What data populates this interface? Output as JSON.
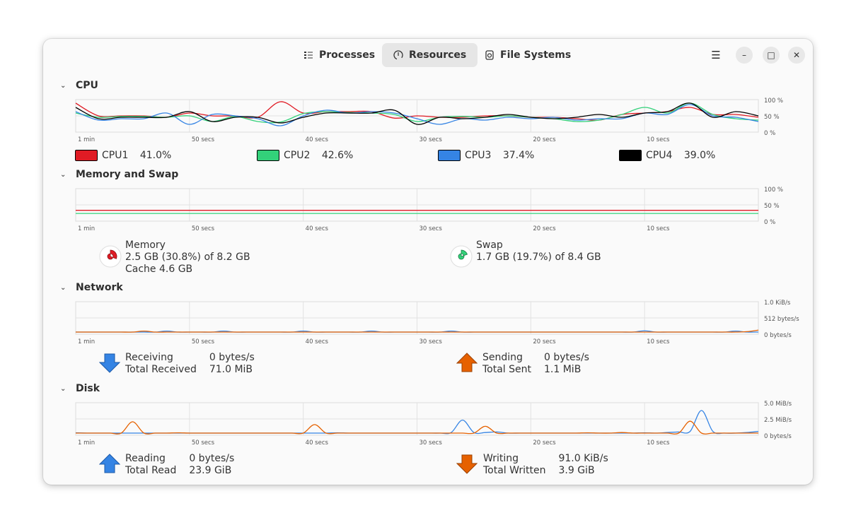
{
  "tabs": [
    {
      "label": "Processes",
      "icon": "list-icon"
    },
    {
      "label": "Resources",
      "icon": "gauge-icon",
      "active": true
    },
    {
      "label": "File Systems",
      "icon": "disk-icon"
    }
  ],
  "window_controls": {
    "menu": "☰",
    "minimize": "–",
    "maximize": "□",
    "close": "✕"
  },
  "time_labels": [
    "1 min",
    "50 secs",
    "40 secs",
    "30 secs",
    "20 secs",
    "10 secs"
  ],
  "cpu": {
    "title": "CPU",
    "y_labels": [
      "100 %",
      "50 %",
      "0 %"
    ],
    "legend": [
      {
        "name": "CPU1",
        "value": "41.0%",
        "color": "#e01b24"
      },
      {
        "name": "CPU2",
        "value": "42.6%",
        "color": "#33d17a"
      },
      {
        "name": "CPU3",
        "value": "37.4%",
        "color": "#3584e4"
      },
      {
        "name": "CPU4",
        "value": "39.0%",
        "color": "#000000"
      }
    ]
  },
  "memory": {
    "title": "Memory and Swap",
    "y_labels": [
      "100 %",
      "50 %",
      "0 %"
    ],
    "memory_label": "Memory",
    "memory_value": "2.5 GB (30.8%) of 8.2 GB",
    "cache": "Cache 4.6 GB",
    "memory_color": "#e01b24",
    "memory_fraction": 0.308,
    "swap_label": "Swap",
    "swap_value": "1.7 GB (19.7%) of 8.4 GB",
    "swap_color": "#33d17a",
    "swap_fraction": 0.197
  },
  "network": {
    "title": "Network",
    "y_labels": [
      "1.0 KiB/s",
      "512 bytes/s",
      "0 bytes/s"
    ],
    "receiving_label": "Receiving",
    "receiving_value": "0 bytes/s",
    "total_received_label": "Total Received",
    "total_received_value": "71.0 MiB",
    "sending_label": "Sending",
    "sending_value": "0 bytes/s",
    "total_sent_label": "Total Sent",
    "total_sent_value": "1.1 MiB",
    "receiving_color": "#3584e4",
    "sending_color": "#e66100"
  },
  "disk": {
    "title": "Disk",
    "y_labels": [
      "5.0 MiB/s",
      "2.5 MiB/s",
      "0 bytes/s"
    ],
    "reading_label": "Reading",
    "reading_value": "0 bytes/s",
    "total_read_label": "Total Read",
    "total_read_value": "23.9 GiB",
    "writing_label": "Writing",
    "writing_value": "91.0 KiB/s",
    "total_written_label": "Total Written",
    "total_written_value": "3.9 GiB",
    "reading_color": "#3584e4",
    "writing_color": "#e66100"
  },
  "chart_data": [
    {
      "type": "line",
      "id": "cpu",
      "x_unit": "seconds ago",
      "x": "60 to 0 step 2",
      "ylim": [
        0,
        100
      ],
      "grid": true,
      "series": [
        {
          "name": "CPU1",
          "color": "#e01b24",
          "values": [
            95,
            50,
            50,
            50,
            45,
            60,
            50,
            50,
            45,
            100,
            60,
            65,
            65,
            65,
            42,
            50,
            45,
            45,
            50,
            50,
            45,
            45,
            40,
            35,
            55,
            60,
            65,
            80,
            55,
            55,
            45
          ]
        },
        {
          "name": "CPU2",
          "color": "#33d17a",
          "values": [
            60,
            45,
            48,
            48,
            45,
            50,
            30,
            48,
            30,
            28,
            58,
            65,
            62,
            60,
            55,
            30,
            45,
            48,
            45,
            50,
            45,
            40,
            30,
            35,
            55,
            80,
            60,
            95,
            55,
            40,
            35
          ]
        },
        {
          "name": "CPU3",
          "color": "#3584e4",
          "values": [
            65,
            35,
            40,
            40,
            60,
            20,
            55,
            50,
            40,
            15,
            50,
            70,
            60,
            65,
            60,
            40,
            20,
            40,
            35,
            45,
            40,
            45,
            35,
            40,
            40,
            60,
            55,
            90,
            50,
            45,
            30
          ]
        },
        {
          "name": "CPU4",
          "color": "#000000",
          "values": [
            80,
            40,
            45,
            45,
            45,
            65,
            30,
            45,
            45,
            25,
            45,
            60,
            60,
            60,
            70,
            20,
            45,
            40,
            45,
            55,
            45,
            40,
            45,
            55,
            45,
            60,
            65,
            95,
            45,
            65,
            50
          ]
        }
      ]
    },
    {
      "type": "line",
      "id": "memory",
      "x_unit": "seconds ago",
      "x": "60 to 0 step 2",
      "ylim": [
        0,
        100
      ],
      "grid": true,
      "series": [
        {
          "name": "Memory",
          "color": "#e01b24",
          "values": [
            30.8,
            30.8,
            30.8,
            30.8,
            30.8,
            30.8,
            30.8,
            30.8,
            30.8,
            30.8,
            30.8,
            30.8,
            30.8,
            30.8,
            30.8,
            30.8,
            30.8,
            30.8,
            30.8,
            30.8,
            30.8,
            30.8,
            30.8,
            30.8,
            30.8,
            30.8,
            30.8,
            30.8,
            30.8,
            30.8,
            30.8
          ]
        },
        {
          "name": "Swap",
          "color": "#33d17a",
          "values": [
            19.7,
            19.7,
            19.7,
            19.7,
            19.7,
            19.7,
            19.7,
            19.7,
            19.7,
            19.7,
            19.7,
            19.7,
            19.7,
            19.7,
            19.7,
            19.7,
            19.7,
            19.7,
            19.7,
            19.7,
            19.7,
            19.7,
            19.7,
            19.7,
            19.7,
            19.7,
            19.7,
            19.7,
            19.7,
            19.7,
            19.7
          ]
        }
      ]
    },
    {
      "type": "line",
      "id": "network",
      "x_unit": "seconds ago",
      "x": "60 to 0 step 1",
      "ylim": [
        0,
        1024
      ],
      "grid": true,
      "series": [
        {
          "name": "Receiving",
          "color": "#3584e4",
          "values": [
            0,
            0,
            0,
            0,
            0,
            0,
            0,
            0,
            35,
            0,
            0,
            0,
            0,
            35,
            0,
            0,
            0,
            0,
            0,
            0,
            35,
            0,
            0,
            0,
            0,
            0,
            35,
            0,
            0,
            0,
            0,
            0,
            0,
            35,
            0,
            0,
            0,
            0,
            0,
            0,
            0,
            0,
            0,
            0,
            0,
            0,
            0,
            0,
            0,
            0,
            45,
            0,
            0,
            0,
            0,
            0,
            0,
            0,
            35,
            0,
            0
          ]
        },
        {
          "name": "Sending",
          "color": "#e66100",
          "values": [
            0,
            0,
            0,
            0,
            0,
            0,
            35,
            0,
            0,
            0,
            0,
            0,
            0,
            0,
            0,
            0,
            0,
            0,
            0,
            0,
            0,
            0,
            0,
            0,
            0,
            0,
            0,
            0,
            0,
            0,
            0,
            0,
            0,
            0,
            0,
            0,
            0,
            0,
            0,
            0,
            0,
            0,
            0,
            0,
            0,
            0,
            0,
            0,
            0,
            0,
            0,
            0,
            0,
            0,
            0,
            0,
            0,
            0,
            0,
            15,
            70
          ]
        }
      ]
    },
    {
      "type": "line",
      "id": "disk",
      "x_unit": "seconds ago",
      "x": "60 to 0 step 1",
      "ylim": [
        0,
        5
      ],
      "grid": true,
      "series": [
        {
          "name": "Reading",
          "color": "#3584e4",
          "values": [
            0.05,
            0,
            0,
            0,
            0,
            0,
            0,
            0,
            0,
            0,
            0,
            0,
            0,
            0,
            0,
            0,
            0,
            0,
            0,
            0,
            0,
            0,
            0,
            0.05,
            0,
            0,
            0,
            0,
            0,
            0,
            0,
            0,
            0,
            0.1,
            2.3,
            0.1,
            0.1,
            0.2,
            0,
            0,
            0,
            0,
            0,
            0,
            0,
            0,
            0,
            0,
            0,
            0,
            0.05,
            0,
            0.1,
            0.2,
            0.3,
            4.0,
            0.3,
            0,
            0,
            0.1,
            0.3
          ]
        },
        {
          "name": "Writing",
          "color": "#e66100",
          "values": [
            0,
            0,
            0,
            0,
            0,
            2.0,
            0,
            0,
            0,
            0.05,
            0,
            0,
            0,
            0,
            0,
            0,
            0,
            0,
            0,
            0,
            0,
            1.5,
            0,
            0,
            0,
            0,
            0,
            0,
            0,
            0,
            0,
            0,
            0,
            0,
            0,
            0,
            1.2,
            0,
            0,
            0,
            0,
            0,
            0,
            0,
            0,
            0.05,
            0,
            0,
            0.1,
            0,
            0,
            0,
            0,
            0,
            2.1,
            0,
            0,
            0,
            0,
            0,
            0
          ]
        }
      ]
    }
  ]
}
